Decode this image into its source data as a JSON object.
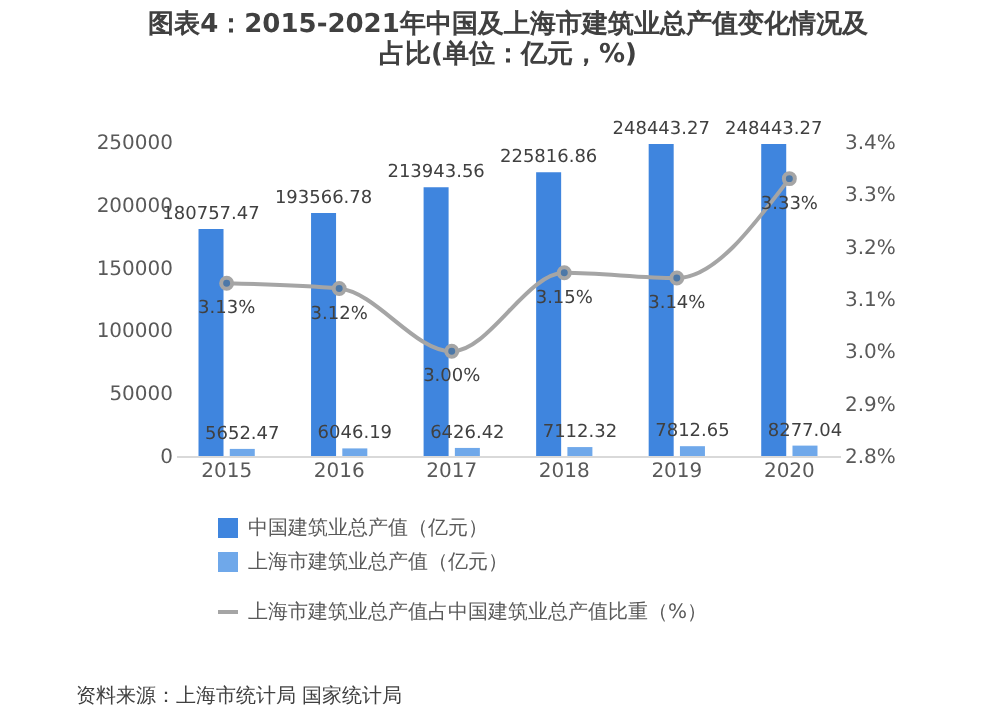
{
  "chart_data": {
    "type": "bar",
    "title": [
      "图表4：2015-2021年中国及上海市建筑业总产值变化情况及",
      "占比(单位：亿元，%)"
    ],
    "categories": [
      "2015",
      "2016",
      "2017",
      "2018",
      "2019",
      "2020"
    ],
    "series": [
      {
        "name": "中国建筑业总产值（亿元）",
        "color": "#3f85de",
        "values": [
          180757.47,
          193566.78,
          213943.56,
          225816.86,
          248443.27,
          248443.27
        ],
        "value_labels": [
          "180757.47",
          "193566.78",
          "213943.56",
          "225816.86",
          "248443.27",
          "248443.27"
        ]
      },
      {
        "name": "上海市建筑业总产值（亿元）",
        "color": "#6fa8ea",
        "values": [
          5652.47,
          6046.19,
          6426.42,
          7112.32,
          7812.65,
          8277.04
        ],
        "value_labels": [
          "5652.47",
          "6046.19",
          "6426.42",
          "7112.32",
          "7812.65",
          "8277.04"
        ]
      },
      {
        "name": "上海市建筑业总产值占中国建筑业总产值比重（%）",
        "type": "line",
        "axis": "y2",
        "color": "#a5a5a5",
        "marker": "circle",
        "values": [
          3.13,
          3.12,
          3.0,
          3.15,
          3.14,
          3.33
        ],
        "value_labels": [
          "3.13%",
          "3.12%",
          "3.00%",
          "3.15%",
          "3.14%",
          "3.33%"
        ]
      }
    ],
    "ylim": [
      0,
      250000
    ],
    "yticks": [
      0,
      50000,
      100000,
      150000,
      200000,
      250000
    ],
    "y2lim": [
      2.8,
      3.4
    ],
    "y2ticks": [
      {
        "value": 2.8,
        "label": "2.8%"
      },
      {
        "value": 2.9,
        "label": "2.9%"
      },
      {
        "value": 3.0,
        "label": "3.0%"
      },
      {
        "value": 3.1,
        "label": "3.1%"
      },
      {
        "value": 3.2,
        "label": "3.2%"
      },
      {
        "value": 3.3,
        "label": "3.3%"
      },
      {
        "value": 3.4,
        "label": "3.4%"
      }
    ],
    "grid": false,
    "legend": "bottom",
    "annotations": [
      "资料来源：上海市统计局 国家统计局"
    ]
  }
}
